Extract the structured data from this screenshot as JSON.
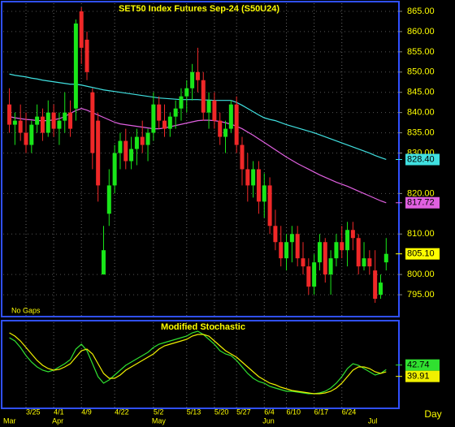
{
  "chart_data": [
    {
      "type": "candlestick",
      "title": "SET50 Index Futures  Sep-24  (S50U24)",
      "annotation": "No Gaps",
      "up_color": "#19e619",
      "down_color": "#f02828",
      "ylim": [
        790,
        867
      ],
      "yticks": [
        {
          "value": 865,
          "label": "865.00"
        },
        {
          "value": 860,
          "label": "860.00"
        },
        {
          "value": 855,
          "label": "855.00"
        },
        {
          "value": 850,
          "label": "850.00"
        },
        {
          "value": 845,
          "label": "845.00"
        },
        {
          "value": 840,
          "label": "840.00"
        },
        {
          "value": 835,
          "label": "835.00"
        },
        {
          "value": 830,
          "label": "830.00"
        },
        {
          "value": 820,
          "label": "820.00"
        },
        {
          "value": 810,
          "label": "810.00"
        },
        {
          "value": 800,
          "label": "800.00"
        },
        {
          "value": 795,
          "label": "795.00"
        }
      ],
      "ohlc": [
        [
          842,
          846,
          835,
          837
        ],
        [
          837,
          840,
          832,
          838
        ],
        [
          838,
          842,
          833,
          835
        ],
        [
          835,
          840,
          830,
          832
        ],
        [
          832,
          838,
          830,
          837
        ],
        [
          837,
          842,
          835,
          839
        ],
        [
          839,
          841,
          833,
          835
        ],
        [
          835,
          843,
          834,
          840
        ],
        [
          840,
          842,
          834,
          836
        ],
        [
          836,
          840,
          832,
          838
        ],
        [
          838,
          845,
          835,
          840
        ],
        [
          840,
          843,
          834,
          836
        ],
        [
          841,
          863,
          838,
          862
        ],
        [
          865,
          866,
          852,
          856
        ],
        [
          858,
          860,
          848,
          850
        ],
        [
          845,
          846,
          826,
          830
        ],
        [
          838,
          840,
          818,
          822
        ],
        [
          800,
          812,
          800,
          806
        ],
        [
          815,
          826,
          812,
          822
        ],
        [
          822,
          832,
          820,
          830
        ],
        [
          830,
          835,
          826,
          833
        ],
        [
          833,
          836,
          826,
          828
        ],
        [
          828,
          834,
          826,
          831
        ],
        [
          831,
          836,
          827,
          834
        ],
        [
          834,
          838,
          830,
          832
        ],
        [
          832,
          836,
          828,
          835
        ],
        [
          835,
          845,
          833,
          842
        ],
        [
          842,
          844,
          836,
          838
        ],
        [
          838,
          842,
          834,
          836
        ],
        [
          836,
          840,
          834,
          839
        ],
        [
          839,
          843,
          836,
          841
        ],
        [
          841,
          846,
          838,
          844
        ],
        [
          844,
          848,
          840,
          846
        ],
        [
          846,
          852,
          843,
          850
        ],
        [
          850,
          856,
          845,
          848
        ],
        [
          848,
          850,
          838,
          840
        ],
        [
          840,
          845,
          836,
          843
        ],
        [
          843,
          845,
          836,
          838
        ],
        [
          838,
          840,
          832,
          834
        ],
        [
          834,
          838,
          830,
          836
        ],
        [
          836,
          843,
          835,
          842
        ],
        [
          842,
          844,
          830,
          832
        ],
        [
          832,
          834,
          822,
          826
        ],
        [
          826,
          830,
          818,
          822
        ],
        [
          822,
          828,
          819,
          826
        ],
        [
          826,
          828,
          815,
          818
        ],
        [
          818,
          825,
          814,
          822
        ],
        [
          822,
          824,
          810,
          812
        ],
        [
          812,
          816,
          806,
          808
        ],
        [
          808,
          812,
          802,
          804
        ],
        [
          804,
          810,
          801,
          808
        ],
        [
          808,
          812,
          803,
          810
        ],
        [
          810,
          812,
          802,
          804
        ],
        [
          804,
          808,
          800,
          802
        ],
        [
          802,
          804,
          795,
          797
        ],
        [
          797,
          805,
          795,
          803
        ],
        [
          803,
          810,
          801,
          808
        ],
        [
          808,
          809,
          798,
          800
        ],
        [
          800,
          806,
          795,
          804
        ],
        [
          804,
          810,
          802,
          808
        ],
        [
          808,
          812,
          804,
          806
        ],
        [
          806,
          813,
          802,
          811
        ],
        [
          811,
          813,
          806,
          809
        ],
        [
          809,
          810,
          800,
          802
        ],
        [
          802,
          808,
          801,
          804
        ],
        [
          804,
          806,
          800,
          802
        ],
        [
          801,
          806,
          793,
          794
        ],
        [
          795,
          800,
          794,
          798
        ],
        [
          803,
          809,
          801,
          805.1
        ]
      ],
      "close_last_label": "805.10",
      "close_label_color": "#ffff00",
      "series": [
        {
          "color": "#40e0e0",
          "last_label": "828.40",
          "values": [
            849.5,
            849.2,
            849,
            848.8,
            848.5,
            848.3,
            848,
            847.8,
            847.6,
            847.4,
            847.2,
            847,
            847,
            846.8,
            846.5,
            846.2,
            845.9,
            845.6,
            845.4,
            845.2,
            845,
            844.8,
            844.6,
            844.4,
            844.2,
            844,
            843.8,
            843.6,
            843.5,
            843.4,
            843.3,
            843.2,
            843.2,
            843.2,
            843.2,
            843.1,
            843.1,
            843,
            843,
            843,
            843,
            842.5,
            841.8,
            841,
            840.2,
            839.4,
            838.7,
            838.3,
            838,
            837.5,
            837,
            836.6,
            836.2,
            835.8,
            835.4,
            835,
            834.5,
            834,
            833.5,
            833,
            832.5,
            832,
            831.5,
            831,
            830.5,
            830,
            829.4,
            828.9,
            828.4
          ]
        },
        {
          "color": "#e060e0",
          "last_label": "817.72",
          "values": [
            839,
            838.7,
            838.5,
            838.3,
            838.2,
            838,
            838,
            838,
            838.2,
            838.5,
            839,
            839.8,
            840.5,
            841,
            840.6,
            840,
            839.4,
            838.8,
            838.2,
            837.6,
            837.2,
            837,
            836.8,
            836.6,
            836.4,
            836.2,
            836,
            836,
            836.2,
            836.5,
            836.8,
            837.1,
            837.4,
            837.7,
            838,
            838.1,
            838.1,
            838,
            837.8,
            837.5,
            837.1,
            836.6,
            836,
            835.2,
            834.4,
            833.5,
            832.6,
            831.7,
            830.8,
            829.9,
            829,
            828.2,
            827.4,
            826.7,
            826,
            825.3,
            824.6,
            824,
            823.4,
            822.8,
            822.3,
            821.8,
            821.2,
            820.6,
            820,
            819.4,
            818.8,
            818.2,
            817.72
          ]
        }
      ]
    },
    {
      "type": "line",
      "title": "Modified  Stochastic",
      "x_label": "Day",
      "ylim": [
        0,
        100
      ],
      "categories": [
        null,
        null,
        null,
        "3/25",
        null,
        null,
        null,
        null,
        "4/1",
        null,
        null,
        null,
        null,
        "4/9",
        null,
        null,
        null,
        null,
        null,
        "4/22",
        null,
        null,
        null,
        null,
        null,
        null,
        "5/2",
        null,
        null,
        null,
        null,
        null,
        "5/13",
        null,
        null,
        null,
        null,
        "5/20",
        null,
        null,
        null,
        "5/27",
        null,
        null,
        null,
        null,
        "6/4",
        null,
        null,
        null,
        "6/10",
        null,
        null,
        null,
        null,
        "6/17",
        null,
        null,
        null,
        null,
        "6/24",
        null,
        null,
        null,
        null,
        null,
        null,
        null,
        null
      ],
      "months": [
        "Mar",
        null,
        null,
        null,
        null,
        null,
        null,
        null,
        "Apr",
        null,
        null,
        null,
        null,
        null,
        null,
        null,
        null,
        null,
        null,
        null,
        null,
        null,
        null,
        null,
        null,
        null,
        "May",
        null,
        null,
        null,
        null,
        null,
        null,
        null,
        null,
        null,
        null,
        null,
        null,
        null,
        null,
        null,
        null,
        null,
        null,
        null,
        "Jun",
        null,
        null,
        null,
        null,
        null,
        null,
        null,
        null,
        null,
        null,
        null,
        null,
        null,
        null,
        null,
        null,
        null,
        null,
        "Jul",
        null,
        null,
        null
      ],
      "series": [
        {
          "color": "#30e030",
          "last_label": "42.74",
          "values": [
            82,
            78,
            70,
            60,
            52,
            46,
            42,
            40,
            42,
            46,
            50,
            55,
            68,
            74,
            66,
            50,
            34,
            26,
            30,
            36,
            42,
            48,
            52,
            56,
            60,
            64,
            70,
            74,
            76,
            78,
            80,
            82,
            84,
            88,
            90,
            86,
            80,
            74,
            66,
            62,
            60,
            54,
            46,
            38,
            32,
            28,
            26,
            22,
            20,
            18,
            16,
            16,
            15,
            14,
            13,
            13,
            14,
            16,
            20,
            26,
            34,
            44,
            50,
            48,
            44,
            40,
            36,
            38,
            42.74
          ]
        },
        {
          "color": "#f0f000",
          "last_label": "39.91",
          "values": [
            88,
            84,
            78,
            70,
            62,
            54,
            48,
            44,
            42,
            43,
            46,
            50,
            58,
            66,
            68,
            62,
            50,
            38,
            32,
            32,
            36,
            42,
            46,
            50,
            54,
            58,
            62,
            68,
            72,
            74,
            76,
            78,
            80,
            84,
            86,
            86,
            84,
            78,
            72,
            66,
            62,
            58,
            52,
            46,
            40,
            34,
            30,
            26,
            24,
            21,
            19,
            17,
            16,
            15,
            14,
            13,
            13,
            14,
            16,
            20,
            26,
            34,
            42,
            46,
            46,
            44,
            40,
            38,
            39.91
          ]
        }
      ]
    }
  ]
}
